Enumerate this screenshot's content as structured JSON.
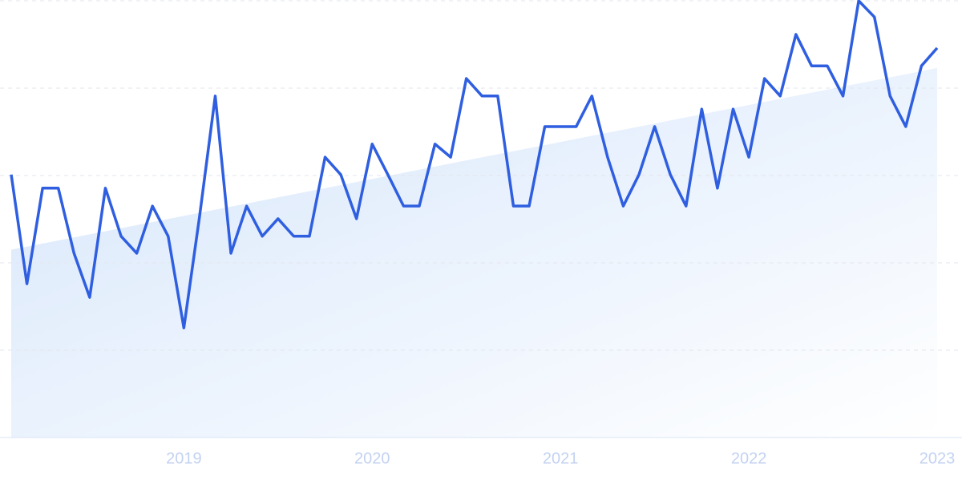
{
  "chart_data": {
    "type": "line",
    "categories": [
      null,
      null,
      null,
      null,
      null,
      null,
      null,
      null,
      null,
      null,
      null,
      "2019",
      null,
      null,
      null,
      null,
      null,
      null,
      null,
      null,
      null,
      null,
      null,
      "2020",
      null,
      null,
      null,
      null,
      null,
      null,
      null,
      null,
      null,
      null,
      null,
      "2021",
      null,
      null,
      null,
      null,
      null,
      null,
      null,
      null,
      null,
      null,
      null,
      "2022",
      null,
      null,
      null,
      null,
      null,
      null,
      null,
      null,
      null,
      null,
      null,
      "2023"
    ],
    "series": [
      {
        "color": "#2f5fe0",
        "values": [
          60.2,
          35.2,
          57.1,
          57.1,
          42.2,
          32.1,
          57.1,
          46.1,
          42.2,
          53.0,
          46.1,
          25.1,
          50.6,
          78.2,
          42.2,
          53.0,
          46.1,
          50.1,
          46.1,
          46.1,
          64.2,
          60.2,
          50.1,
          67.2,
          60.2,
          53.0,
          53.0,
          67.2,
          64.2,
          82.2,
          78.2,
          78.2,
          53.0,
          53.0,
          71.2,
          71.2,
          71.2,
          78.2,
          64.2,
          53.0,
          60.2,
          71.2,
          60.2,
          53.0,
          75.2,
          57.1,
          75.2,
          64.2,
          82.2,
          78.2,
          92.3,
          85.1,
          85.1,
          78.2,
          100,
          96.3,
          78.2,
          71.2,
          85.1,
          89.2
        ]
      }
    ],
    "trend_values": [
      43,
      84.6
    ],
    "ylim": [
      0,
      100
    ],
    "yticks": [
      0,
      20,
      40,
      60,
      80,
      100
    ],
    "grid": true
  }
}
